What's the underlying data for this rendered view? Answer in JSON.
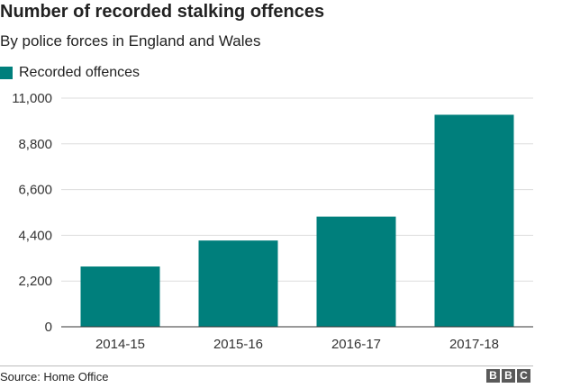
{
  "chart_data": {
    "type": "bar",
    "title": "Number of recorded stalking offences",
    "subtitle": "By police forces in England and Wales",
    "categories": [
      "2014-15",
      "2015-16",
      "2016-17",
      "2017-18"
    ],
    "series": [
      {
        "name": "Recorded offences",
        "values": [
          2900,
          4150,
          5300,
          10200
        ]
      }
    ],
    "ylim": [
      0,
      11000
    ],
    "yticks": [
      0,
      2200,
      4400,
      6600,
      8800,
      11000
    ],
    "ytick_labels": [
      "0",
      "2,200",
      "4,400",
      "6,600",
      "8,800",
      "11,000"
    ],
    "xlabel": "",
    "ylabel": "",
    "grid": true,
    "legend_position": "top-left",
    "colors": {
      "bar": "#007f7c",
      "grid": "#dddddd",
      "axis": "#333333"
    }
  },
  "footer": {
    "source": "Source: Home Office",
    "logo": [
      "B",
      "B",
      "C"
    ]
  }
}
